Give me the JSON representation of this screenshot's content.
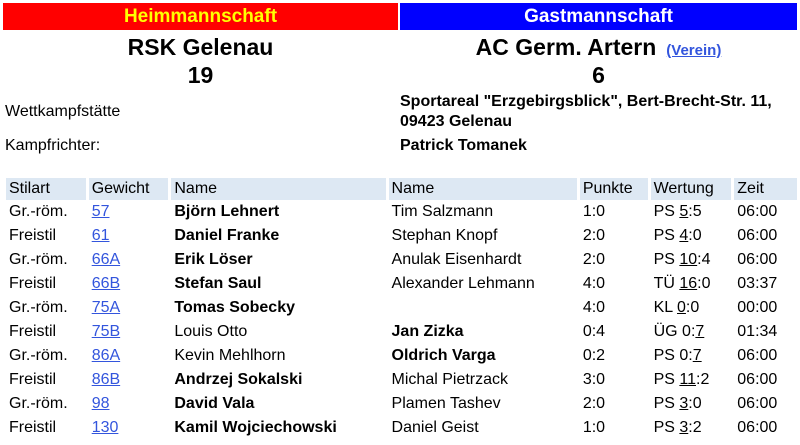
{
  "header": {
    "home_label": "Heimmannschaft",
    "guest_label": "Gastmannschaft"
  },
  "home": {
    "team": "RSK Gelenau",
    "score": "19"
  },
  "guest": {
    "team": "AC Germ. Artern",
    "score": "6",
    "verein_link": "(Verein)"
  },
  "colors": {
    "home": "#ff0000",
    "home_text": "#ffff00",
    "guest": "#0000ff",
    "link": "#3355dd",
    "table_header": "#dde8f3"
  },
  "info": {
    "venue_label": "Wettkampfstätte",
    "venue_line1": "Sportareal \"Erzgebirgsblick\", Bert-Brecht-Str. 11,",
    "venue_line2": "09423 Gelenau",
    "referee_label": "Kampfrichter:",
    "referee": "Patrick Tomanek"
  },
  "table": {
    "columns": [
      "Stilart",
      "Gewicht",
      "Name",
      "Name",
      "Punkte",
      "Wertung",
      "Zeit"
    ],
    "rows": [
      {
        "stil": "Gr.-röm.",
        "gewicht": "57",
        "home": "Björn Lehnert",
        "guest": "Tim Salzmann",
        "winner": "home",
        "punkte": "1:0",
        "typ": "PS",
        "l": "5",
        "r": "5",
        "u": "l",
        "zeit": "06:00"
      },
      {
        "stil": "Freistil",
        "gewicht": "61",
        "home": "Daniel Franke",
        "guest": "Stephan Knopf",
        "winner": "home",
        "punkte": "2:0",
        "typ": "PS",
        "l": "4",
        "r": "0",
        "u": "l",
        "zeit": "06:00"
      },
      {
        "stil": "Gr.-röm.",
        "gewicht": "66A",
        "home": "Erik Löser",
        "guest": "Anulak Eisenhardt",
        "winner": "home",
        "punkte": "2:0",
        "typ": "PS",
        "l": "10",
        "r": "4",
        "u": "l",
        "zeit": "06:00"
      },
      {
        "stil": "Freistil",
        "gewicht": "66B",
        "home": "Stefan Saul",
        "guest": "Alexander Lehmann",
        "winner": "home",
        "punkte": "4:0",
        "typ": "TÜ",
        "l": "16",
        "r": "0",
        "u": "l",
        "zeit": "03:37"
      },
      {
        "stil": "Gr.-röm.",
        "gewicht": "75A",
        "home": "Tomas Sobecky",
        "guest": "",
        "winner": "home",
        "punkte": "4:0",
        "typ": "KL",
        "l": "0",
        "r": "0",
        "u": "l",
        "zeit": "00:00"
      },
      {
        "stil": "Freistil",
        "gewicht": "75B",
        "home": "Louis Otto",
        "guest": "Jan Zizka",
        "winner": "guest",
        "punkte": "0:4",
        "typ": "ÜG",
        "l": "0",
        "r": "7",
        "u": "r",
        "zeit": "01:34"
      },
      {
        "stil": "Gr.-röm.",
        "gewicht": "86A",
        "home": "Kevin Mehlhorn",
        "guest": "Oldrich Varga",
        "winner": "guest",
        "punkte": "0:2",
        "typ": "PS",
        "l": "0",
        "r": "7",
        "u": "r",
        "zeit": "06:00"
      },
      {
        "stil": "Freistil",
        "gewicht": "86B",
        "home": "Andrzej Sokalski",
        "guest": "Michal Pietrzack",
        "winner": "home",
        "punkte": "3:0",
        "typ": "PS",
        "l": "11",
        "r": "2",
        "u": "l",
        "zeit": "06:00"
      },
      {
        "stil": "Gr.-röm.",
        "gewicht": "98",
        "home": "David Vala",
        "guest": "Plamen Tashev",
        "winner": "home",
        "punkte": "2:0",
        "typ": "PS",
        "l": "3",
        "r": "0",
        "u": "l",
        "zeit": "06:00"
      },
      {
        "stil": "Freistil",
        "gewicht": "130",
        "home": "Kamil Wojciechowski",
        "guest": "Daniel Geist",
        "winner": "home",
        "punkte": "1:0",
        "typ": "PS",
        "l": "3",
        "r": "2",
        "u": "l",
        "zeit": "06:00"
      }
    ]
  }
}
